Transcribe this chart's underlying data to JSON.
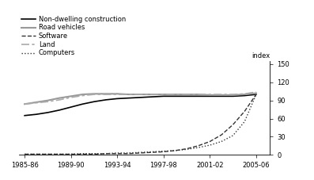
{
  "years": [
    1985,
    1986,
    1987,
    1988,
    1989,
    1990,
    1991,
    1992,
    1993,
    1994,
    1995,
    1996,
    1997,
    1998,
    1999,
    2000,
    2001,
    2002,
    2003,
    2004,
    2005
  ],
  "non_dwelling": [
    65,
    67,
    70,
    74,
    79,
    84,
    88,
    91,
    93,
    94,
    95,
    96,
    97,
    97,
    97,
    97,
    97,
    97,
    97,
    98,
    100
  ],
  "road_vehicles": [
    84,
    87,
    90,
    94,
    97,
    100,
    101,
    101,
    101,
    100,
    100,
    100,
    100,
    100,
    100,
    100,
    99,
    99,
    99,
    100,
    102
  ],
  "software": [
    1,
    1,
    1,
    1,
    1,
    1,
    1,
    2,
    2,
    2,
    3,
    4,
    5,
    7,
    10,
    15,
    22,
    33,
    50,
    72,
    100
  ],
  "land": [
    84,
    86,
    88,
    91,
    95,
    98,
    100,
    100,
    100,
    100,
    100,
    100,
    100,
    100,
    100,
    100,
    100,
    100,
    100,
    101,
    104
  ],
  "computers": [
    1,
    1,
    1,
    1,
    1,
    2,
    2,
    2,
    3,
    3,
    4,
    5,
    6,
    7,
    9,
    12,
    16,
    22,
    32,
    55,
    100
  ],
  "x_tick_labels": [
    "1985-86",
    "1989-90",
    "1993-94",
    "1997-98",
    "2001-02",
    "2005-06"
  ],
  "x_tick_positions": [
    1985,
    1989,
    1993,
    1997,
    2001,
    2005
  ],
  "y_ticks": [
    0,
    30,
    60,
    90,
    120,
    150
  ],
  "ylim": [
    0,
    155
  ],
  "xlim": [
    1984.5,
    2006.2
  ],
  "index_label": "index",
  "legend_entries": [
    {
      "label": "Non-dwelling construction",
      "color": "#000000",
      "linestyle": "solid",
      "lw": 1.2
    },
    {
      "label": "Road vehicles",
      "color": "#999999",
      "linestyle": "solid",
      "lw": 1.5
    },
    {
      "label": "Software",
      "color": "#333333",
      "linestyle": "dashed",
      "lw": 1.0
    },
    {
      "label": "Land",
      "color": "#aaaaaa",
      "linestyle": "dashdot",
      "lw": 1.2
    },
    {
      "label": "Computers",
      "color": "#333333",
      "linestyle": "dotted",
      "lw": 1.0
    }
  ],
  "bg_color": "#ffffff",
  "legend_font_size": 6.0,
  "tick_font_size": 6.0
}
